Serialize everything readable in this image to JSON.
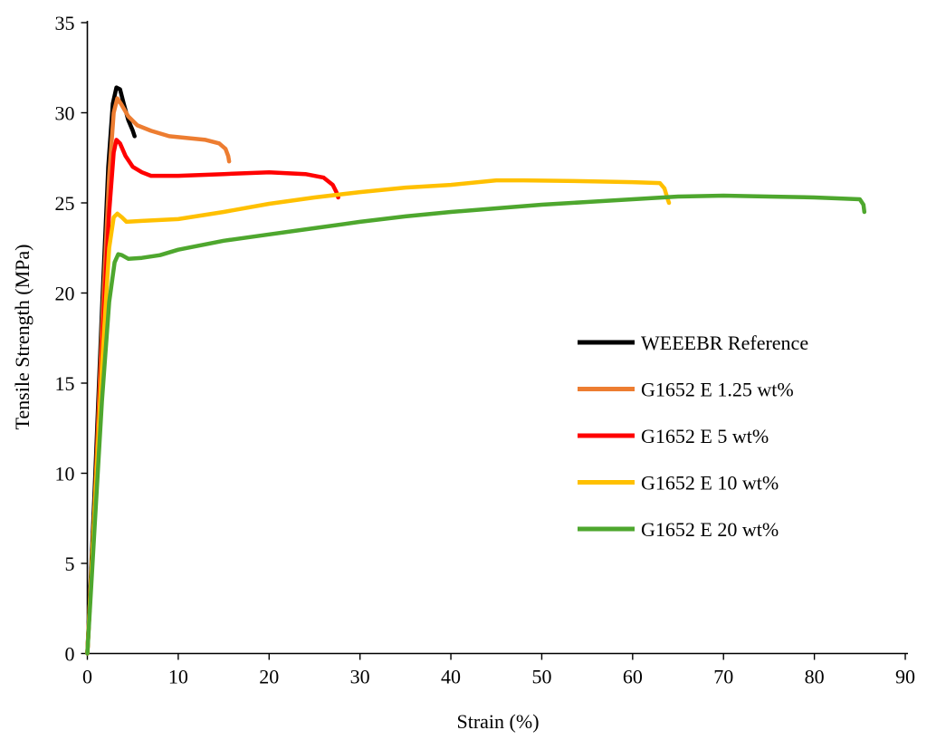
{
  "chart_data": {
    "type": "line",
    "title": "",
    "xlabel": "Strain (%)",
    "ylabel": "Tensile Strength (MPa)",
    "xlim": [
      0,
      90
    ],
    "ylim": [
      0,
      35
    ],
    "xticks": [
      0,
      10,
      20,
      30,
      40,
      50,
      60,
      70,
      80,
      90
    ],
    "yticks": [
      0,
      5,
      10,
      15,
      20,
      25,
      30,
      35
    ],
    "grid": false,
    "legend_position": "right-middle",
    "series": [
      {
        "name": "WEEEBR Reference",
        "color": "#000000",
        "points": [
          [
            0,
            0
          ],
          [
            0.8,
            9
          ],
          [
            1.6,
            19
          ],
          [
            2.3,
            27
          ],
          [
            2.8,
            30.5
          ],
          [
            3.2,
            31.4
          ],
          [
            3.6,
            31.3
          ],
          [
            4.0,
            30.5
          ],
          [
            4.5,
            29.6
          ],
          [
            5.0,
            29.0
          ],
          [
            5.2,
            28.7
          ]
        ]
      },
      {
        "name": "G1652 E 1.25 wt%",
        "color": "#ED7D31",
        "points": [
          [
            0,
            0
          ],
          [
            0.8,
            8
          ],
          [
            1.6,
            18
          ],
          [
            2.4,
            26.5
          ],
          [
            2.9,
            30.0
          ],
          [
            3.3,
            30.8
          ],
          [
            3.7,
            30.5
          ],
          [
            4.5,
            29.8
          ],
          [
            5.5,
            29.3
          ],
          [
            7,
            29.0
          ],
          [
            9,
            28.7
          ],
          [
            11,
            28.6
          ],
          [
            13,
            28.5
          ],
          [
            14.5,
            28.3
          ],
          [
            15.2,
            28.0
          ],
          [
            15.5,
            27.6
          ],
          [
            15.6,
            27.3
          ]
        ]
      },
      {
        "name": "G1652 E 5 wt%",
        "color": "#FF0000",
        "points": [
          [
            0,
            0
          ],
          [
            0.8,
            8
          ],
          [
            1.6,
            17
          ],
          [
            2.4,
            24.5
          ],
          [
            2.9,
            27.8
          ],
          [
            3.2,
            28.5
          ],
          [
            3.6,
            28.3
          ],
          [
            4.2,
            27.6
          ],
          [
            5,
            27.0
          ],
          [
            6,
            26.7
          ],
          [
            7,
            26.5
          ],
          [
            10,
            26.5
          ],
          [
            15,
            26.6
          ],
          [
            20,
            26.7
          ],
          [
            24,
            26.6
          ],
          [
            26,
            26.4
          ],
          [
            27,
            26.0
          ],
          [
            27.4,
            25.6
          ],
          [
            27.6,
            25.3
          ]
        ]
      },
      {
        "name": "G1652 E 10 wt%",
        "color": "#FFC000",
        "points": [
          [
            0,
            0
          ],
          [
            0.8,
            8
          ],
          [
            1.6,
            16
          ],
          [
            2.4,
            22.5
          ],
          [
            2.9,
            24.2
          ],
          [
            3.3,
            24.4
          ],
          [
            3.8,
            24.2
          ],
          [
            4.3,
            23.95
          ],
          [
            6,
            24.0
          ],
          [
            10,
            24.1
          ],
          [
            15,
            24.5
          ],
          [
            20,
            24.95
          ],
          [
            25,
            25.3
          ],
          [
            30,
            25.6
          ],
          [
            35,
            25.85
          ],
          [
            40,
            26.0
          ],
          [
            45,
            26.25
          ],
          [
            48,
            26.25
          ],
          [
            55,
            26.2
          ],
          [
            60,
            26.15
          ],
          [
            63,
            26.1
          ],
          [
            63.5,
            25.8
          ],
          [
            63.8,
            25.3
          ],
          [
            64,
            25.0
          ]
        ]
      },
      {
        "name": "G1652 E 20 wt%",
        "color": "#4EA72E",
        "points": [
          [
            0,
            0
          ],
          [
            0.8,
            7
          ],
          [
            1.6,
            14
          ],
          [
            2.4,
            19.5
          ],
          [
            3.0,
            21.7
          ],
          [
            3.4,
            22.15
          ],
          [
            3.8,
            22.1
          ],
          [
            4.5,
            21.9
          ],
          [
            6,
            21.95
          ],
          [
            8,
            22.1
          ],
          [
            10,
            22.4
          ],
          [
            15,
            22.9
          ],
          [
            20,
            23.25
          ],
          [
            25,
            23.6
          ],
          [
            30,
            23.95
          ],
          [
            35,
            24.25
          ],
          [
            40,
            24.5
          ],
          [
            45,
            24.7
          ],
          [
            50,
            24.9
          ],
          [
            55,
            25.05
          ],
          [
            60,
            25.2
          ],
          [
            65,
            25.35
          ],
          [
            70,
            25.4
          ],
          [
            75,
            25.35
          ],
          [
            80,
            25.3
          ],
          [
            85,
            25.2
          ],
          [
            85.4,
            24.9
          ],
          [
            85.5,
            24.5
          ]
        ]
      }
    ]
  }
}
